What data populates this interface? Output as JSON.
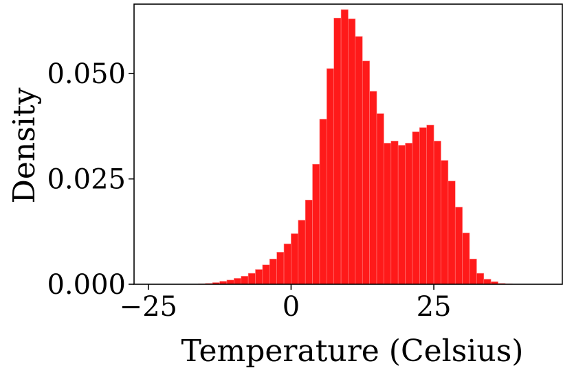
{
  "chart_data": {
    "type": "histogram",
    "title": "",
    "xlabel": "Temperature (Celsius)",
    "ylabel": "Density",
    "xlim": [
      -27.5,
      47.5
    ],
    "ylim": [
      0,
      0.0665
    ],
    "x_ticks": [
      -25,
      0,
      25
    ],
    "x_tick_labels": [
      "−25",
      "0",
      "25"
    ],
    "y_ticks": [
      0.0,
      0.025,
      0.05
    ],
    "y_tick_labels": [
      "0.000",
      "0.025",
      "0.050"
    ],
    "grid": false,
    "legend": "none",
    "bar_color": "#ff1a1a",
    "bar_edge_color": "#ff8080",
    "bin_width": 1.25,
    "bin_edges_start": -16.25,
    "densities": [
      0.0001,
      0.0002,
      0.0004,
      0.0007,
      0.001,
      0.0014,
      0.0019,
      0.0026,
      0.0035,
      0.0046,
      0.006,
      0.0076,
      0.0096,
      0.012,
      0.0152,
      0.02,
      0.0285,
      0.0392,
      0.0512,
      0.0632,
      0.0652,
      0.063,
      0.0588,
      0.053,
      0.0458,
      0.0405,
      0.0335,
      0.034,
      0.033,
      0.0335,
      0.0362,
      0.0372,
      0.0378,
      0.034,
      0.0294,
      0.0245,
      0.0183,
      0.0122,
      0.006,
      0.0026,
      0.0012,
      0.0006,
      0.0002,
      0.0001
    ]
  }
}
